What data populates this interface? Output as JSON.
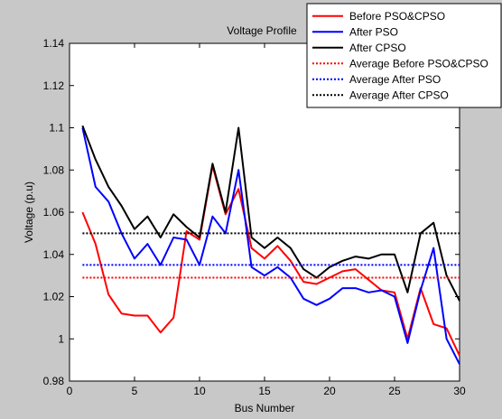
{
  "chart_data": {
    "type": "line",
    "title": "Voltage Profile",
    "xlabel": "Bus Number",
    "ylabel": "Voltage (p.u)",
    "xlim": [
      0,
      30
    ],
    "ylim": [
      0.98,
      1.14
    ],
    "xticks": [
      0,
      5,
      10,
      15,
      20,
      25,
      30
    ],
    "yticks": [
      0.98,
      1,
      1.02,
      1.04,
      1.06,
      1.08,
      1.1,
      1.12,
      1.14
    ],
    "ytick_labels": [
      "0.98",
      "1",
      "1.02",
      "1.04",
      "1.06",
      "1.08",
      "1.1",
      "1.12",
      "1.14"
    ],
    "grid": false,
    "legend_position": "top-right",
    "x": [
      1,
      2,
      3,
      4,
      5,
      6,
      7,
      8,
      9,
      10,
      11,
      12,
      13,
      14,
      15,
      16,
      17,
      18,
      19,
      20,
      21,
      22,
      23,
      24,
      25,
      26,
      27,
      28,
      29,
      30
    ],
    "series": [
      {
        "name": "Before PSO&CPSO",
        "color": "#ff0000",
        "style": "solid",
        "values": [
          1.06,
          1.045,
          1.021,
          1.012,
          1.011,
          1.011,
          1.003,
          1.01,
          1.051,
          1.047,
          1.082,
          1.059,
          1.071,
          1.043,
          1.038,
          1.044,
          1.037,
          1.027,
          1.026,
          1.029,
          1.032,
          1.033,
          1.028,
          1.023,
          1.022,
          1.0,
          1.024,
          1.007,
          1.005,
          0.992
        ]
      },
      {
        "name": "After PSO",
        "color": "#0000ff",
        "style": "solid",
        "values": [
          1.1,
          1.072,
          1.065,
          1.05,
          1.038,
          1.045,
          1.035,
          1.048,
          1.047,
          1.035,
          1.058,
          1.05,
          1.08,
          1.034,
          1.03,
          1.034,
          1.029,
          1.019,
          1.016,
          1.019,
          1.024,
          1.024,
          1.022,
          1.023,
          1.02,
          0.998,
          1.023,
          1.043,
          1.0,
          0.988
        ]
      },
      {
        "name": "After CPSO",
        "color": "#000000",
        "style": "solid",
        "values": [
          1.101,
          1.085,
          1.072,
          1.063,
          1.052,
          1.058,
          1.048,
          1.059,
          1.053,
          1.048,
          1.083,
          1.06,
          1.1,
          1.048,
          1.043,
          1.048,
          1.043,
          1.033,
          1.029,
          1.034,
          1.037,
          1.039,
          1.038,
          1.04,
          1.04,
          1.022,
          1.05,
          1.055,
          1.03,
          1.018
        ]
      },
      {
        "name": "Average Before PSO&CPSO",
        "color": "#ff0000",
        "style": "dotted",
        "values": [
          1.029,
          1.029,
          1.029,
          1.029,
          1.029,
          1.029,
          1.029,
          1.029,
          1.029,
          1.029,
          1.029,
          1.029,
          1.029,
          1.029,
          1.029,
          1.029,
          1.029,
          1.029,
          1.029,
          1.029,
          1.029,
          1.029,
          1.029,
          1.029,
          1.029,
          1.029,
          1.029,
          1.029,
          1.029,
          1.029
        ]
      },
      {
        "name": "Average After PSO",
        "color": "#0000ff",
        "style": "dotted",
        "values": [
          1.035,
          1.035,
          1.035,
          1.035,
          1.035,
          1.035,
          1.035,
          1.035,
          1.035,
          1.035,
          1.035,
          1.035,
          1.035,
          1.035,
          1.035,
          1.035,
          1.035,
          1.035,
          1.035,
          1.035,
          1.035,
          1.035,
          1.035,
          1.035,
          1.035,
          1.035,
          1.035,
          1.035,
          1.035,
          1.035
        ]
      },
      {
        "name": "Average After CPSO",
        "color": "#000000",
        "style": "dotted",
        "values": [
          1.05,
          1.05,
          1.05,
          1.05,
          1.05,
          1.05,
          1.05,
          1.05,
          1.05,
          1.05,
          1.05,
          1.05,
          1.05,
          1.05,
          1.05,
          1.05,
          1.05,
          1.05,
          1.05,
          1.05,
          1.05,
          1.05,
          1.05,
          1.05,
          1.05,
          1.05,
          1.05,
          1.05,
          1.05,
          1.05
        ]
      }
    ]
  }
}
